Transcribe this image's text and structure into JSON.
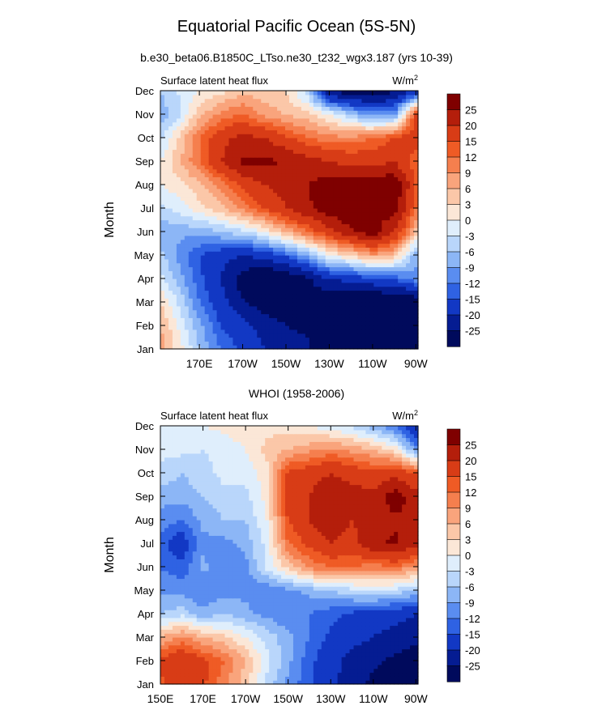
{
  "title": "Equatorial Pacific Ocean (5S-5N)",
  "subtitle": "b.e30_beta06.B1850C_LTso.ne30_t232_wgx3.187 (yrs 10-39)",
  "colorbar": {
    "labels": [
      "25",
      "20",
      "15",
      "12",
      "9",
      "6",
      "3",
      "0",
      "-3",
      "-6",
      "-9",
      "-12",
      "-15",
      "-20",
      "-25"
    ],
    "colors": [
      "#7f0000",
      "#b41e0b",
      "#d83c16",
      "#ef5b25",
      "#f57f4e",
      "#f9a47c",
      "#fbc7a8",
      "#fbe7d7",
      "#dfeefc",
      "#b9d6fb",
      "#8cb6f6",
      "#5a8df0",
      "#2f62e3",
      "#1238c4",
      "#051c92",
      "#000a5c"
    ]
  },
  "chart_data": [
    {
      "type": "heatmap",
      "panel_label": "",
      "left_label": "Surface latent heat flux",
      "units": "W/m",
      "units_superscript": "2",
      "ylabel": "Month",
      "months": [
        "Jan",
        "Feb",
        "Mar",
        "Apr",
        "May",
        "Jun",
        "Jul",
        "Aug",
        "Sep",
        "Oct",
        "Nov",
        "Dec"
      ],
      "x_ticks": [
        "170E",
        "170W",
        "150W",
        "130W",
        "110W",
        "90W"
      ],
      "x_tick_lon": [
        170,
        190,
        210,
        230,
        250,
        270
      ],
      "x_range_lon": [
        152,
        271
      ],
      "lons": [
        152,
        160,
        170,
        180,
        190,
        200,
        210,
        220,
        230,
        240,
        250,
        260,
        270
      ],
      "z": [
        [
          8,
          2,
          -6,
          -12,
          -16,
          -20,
          -22,
          -24,
          -30,
          -32,
          -32,
          -32,
          -30
        ],
        [
          6,
          0,
          -8,
          -15,
          -18,
          -22,
          -25,
          -26,
          -30,
          -32,
          -32,
          -32,
          -30
        ],
        [
          3,
          -3,
          -12,
          -18,
          -24,
          -28,
          -28,
          -26,
          -30,
          -32,
          -32,
          -32,
          -30
        ],
        [
          -2,
          -7,
          -14,
          -20,
          -28,
          -32,
          -30,
          -26,
          -20,
          -18,
          -16,
          -14,
          -10
        ],
        [
          -5,
          -10,
          -15,
          -18,
          -20,
          -18,
          -14,
          -8,
          0,
          3,
          8,
          5,
          -8
        ],
        [
          -8,
          -8,
          -8,
          -6,
          -4,
          0,
          6,
          12,
          18,
          24,
          28,
          20,
          5
        ],
        [
          -4,
          -2,
          2,
          5,
          10,
          15,
          20,
          24,
          28,
          30,
          25,
          28,
          12
        ],
        [
          0,
          2,
          5,
          10,
          16,
          20,
          22,
          25,
          28,
          30,
          28,
          30,
          15
        ],
        [
          0,
          5,
          12,
          20,
          26,
          26,
          25,
          22,
          20,
          18,
          18,
          20,
          12
        ],
        [
          -4,
          3,
          12,
          18,
          22,
          20,
          16,
          12,
          10,
          10,
          12,
          15,
          18
        ],
        [
          -8,
          -4,
          5,
          10,
          12,
          8,
          6,
          4,
          0,
          -6,
          -10,
          -10,
          16
        ],
        [
          -6,
          -3,
          0,
          2,
          5,
          4,
          3,
          -5,
          -25,
          -28,
          -30,
          -25,
          -20
        ]
      ]
    },
    {
      "type": "heatmap",
      "panel_label": "WHOI (1958-2006)",
      "left_label": "Surface latent heat flux",
      "units": "W/m",
      "units_superscript": "2",
      "ylabel": "Month",
      "months": [
        "Jan",
        "Feb",
        "Mar",
        "Apr",
        "May",
        "Jun",
        "Jul",
        "Aug",
        "Sep",
        "Oct",
        "Nov",
        "Dec"
      ],
      "x_ticks": [
        "150E",
        "170E",
        "170W",
        "150W",
        "130W",
        "110W",
        "90W"
      ],
      "x_tick_lon": [
        150,
        170,
        190,
        210,
        230,
        250,
        270
      ],
      "x_range_lon": [
        150,
        271
      ],
      "lons": [
        150,
        160,
        170,
        180,
        190,
        200,
        210,
        220,
        230,
        240,
        250,
        260,
        270
      ],
      "z": [
        [
          14,
          18,
          16,
          10,
          4,
          -4,
          -10,
          -14,
          -18,
          -24,
          -26,
          -28,
          -30
        ],
        [
          16,
          20,
          16,
          12,
          6,
          -2,
          -8,
          -14,
          -18,
          -22,
          -24,
          -26,
          -28
        ],
        [
          6,
          10,
          6,
          4,
          0,
          -4,
          -8,
          -12,
          -16,
          -18,
          -20,
          -22,
          -24
        ],
        [
          -6,
          -4,
          -8,
          -6,
          -8,
          -10,
          -12,
          -12,
          -14,
          -16,
          -18,
          -18,
          -20
        ],
        [
          -10,
          -10,
          -12,
          -10,
          -10,
          -12,
          -10,
          -8,
          -6,
          -4,
          -2,
          -4,
          -6
        ],
        [
          -12,
          -14,
          -8,
          -12,
          -10,
          -2,
          4,
          10,
          12,
          12,
          10,
          12,
          8
        ],
        [
          -14,
          -18,
          -10,
          -10,
          -8,
          -2,
          12,
          16,
          20,
          18,
          24,
          26,
          22
        ],
        [
          -10,
          -12,
          -8,
          -6,
          -6,
          0,
          15,
          20,
          24,
          20,
          22,
          24,
          24
        ],
        [
          -8,
          -8,
          -6,
          -4,
          -4,
          1,
          18,
          20,
          24,
          22,
          22,
          28,
          22
        ],
        [
          -4,
          -6,
          -4,
          -2,
          -2,
          2,
          16,
          18,
          20,
          18,
          16,
          18,
          15
        ],
        [
          -2,
          -2,
          -3,
          -2,
          0,
          4,
          6,
          8,
          10,
          8,
          6,
          2,
          -10
        ],
        [
          0,
          0,
          0,
          1,
          2,
          2,
          2,
          0,
          -2,
          -4,
          -8,
          -12,
          -20
        ]
      ]
    }
  ]
}
